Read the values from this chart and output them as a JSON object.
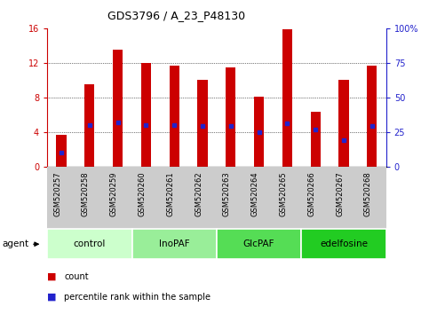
{
  "title": "GDS3796 / A_23_P48130",
  "samples": [
    "GSM520257",
    "GSM520258",
    "GSM520259",
    "GSM520260",
    "GSM520261",
    "GSM520262",
    "GSM520263",
    "GSM520264",
    "GSM520265",
    "GSM520266",
    "GSM520267",
    "GSM520268"
  ],
  "counts": [
    3.7,
    9.5,
    13.5,
    12.0,
    11.7,
    10.0,
    11.5,
    8.1,
    15.9,
    6.3,
    10.0,
    11.7
  ],
  "percentile_ranks": [
    10,
    30,
    32,
    30,
    30,
    29,
    29,
    25,
    31,
    27,
    19,
    29
  ],
  "bar_color": "#cc0000",
  "dot_color": "#2222cc",
  "ylim_left": [
    0,
    16
  ],
  "ylim_right": [
    0,
    100
  ],
  "yticks_left": [
    0,
    4,
    8,
    12,
    16
  ],
  "yticks_right": [
    0,
    25,
    50,
    75,
    100
  ],
  "ytick_labels_right": [
    "0",
    "25",
    "50",
    "75",
    "100%"
  ],
  "groups": [
    {
      "label": "control",
      "indices": [
        0,
        1,
        2
      ],
      "color": "#ccffcc"
    },
    {
      "label": "InoPAF",
      "indices": [
        3,
        4,
        5
      ],
      "color": "#99ee99"
    },
    {
      "label": "GlcPAF",
      "indices": [
        6,
        7,
        8
      ],
      "color": "#55dd55"
    },
    {
      "label": "edelfosine",
      "indices": [
        9,
        10,
        11
      ],
      "color": "#22cc22"
    }
  ],
  "left_axis_color": "#cc0000",
  "right_axis_color": "#2222cc",
  "bar_width": 0.35,
  "legend_count_label": "count",
  "legend_pct_label": "percentile rank within the sample",
  "agent_label": "agent",
  "tick_label_area_color": "#cccccc",
  "plot_bg_color": "#ffffff"
}
